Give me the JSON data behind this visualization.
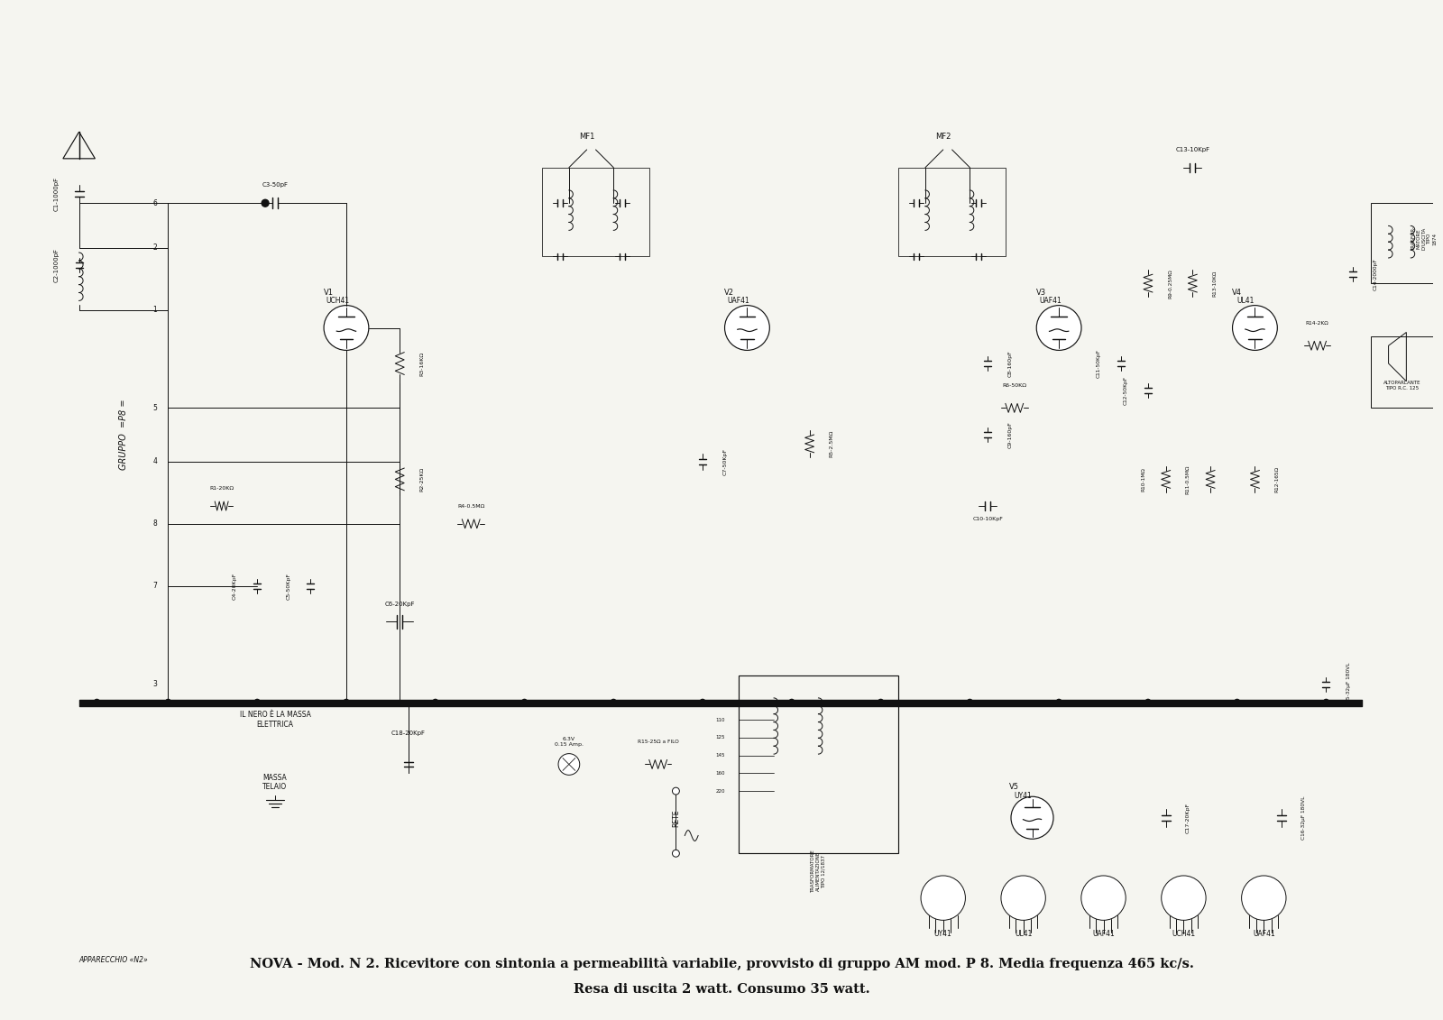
{
  "title_line1": "NOVA - Mod. N 2. Ricevitore con sintonia a permeabilità variabile, provvisto di gruppo AM mod. P 8. Media frequenza 465 kc/s.",
  "title_line2": "Resa di uscita 2 watt. Consumo 35 watt.",
  "bottom_label": "APPARECCHIO «N2»",
  "tube_labels": [
    "V1\nUCH41",
    "V2\nUAF41",
    "V3\nUAF41",
    "V4\nUL41",
    "V5\nUY41"
  ],
  "pin_labels": [
    "UY41",
    "UL41",
    "UAF41",
    "UCH41",
    "UAF41"
  ],
  "mf_labels": [
    "MF1",
    "MF2"
  ],
  "gruppo_label": "GRUPPO =P8 =",
  "bg_color": "#f5f5f0",
  "line_color": "#111111",
  "figsize": [
    16.0,
    11.31
  ],
  "dpi": 100
}
